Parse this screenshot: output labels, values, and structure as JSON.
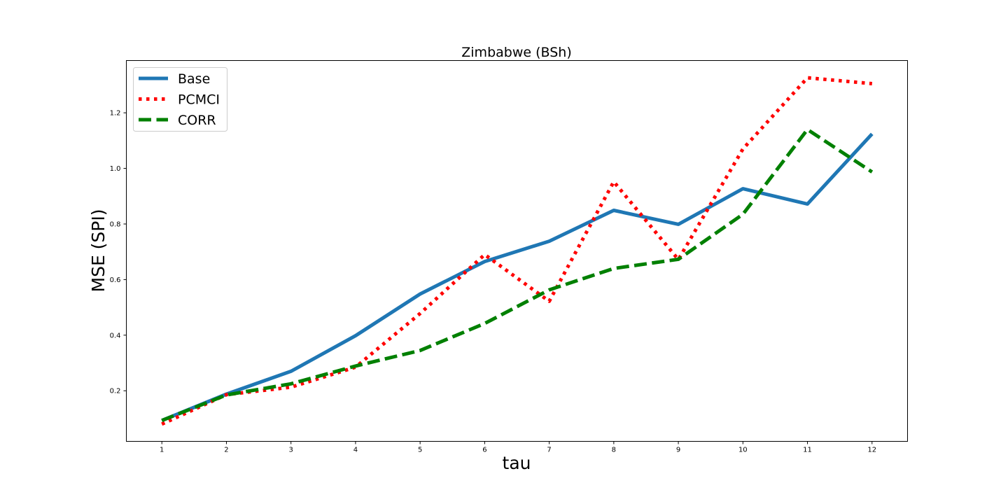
{
  "chart_data": {
    "type": "line",
    "title": "Zimbabwe (BSh)",
    "xlabel": "tau",
    "ylabel": "MSE (SPI)",
    "x": [
      1,
      2,
      3,
      4,
      5,
      6,
      7,
      8,
      9,
      10,
      11,
      12
    ],
    "x_tick_labels": [
      "1",
      "2",
      "3",
      "4",
      "5",
      "6",
      "7",
      "8",
      "9",
      "10",
      "11",
      "12"
    ],
    "y_ticks": [
      0.2,
      0.4,
      0.6,
      0.8,
      1.0,
      1.2
    ],
    "y_tick_labels": [
      "0.2",
      "0.4",
      "0.6",
      "0.8",
      "1.0",
      "1.2"
    ],
    "xlim": [
      0.45,
      12.55
    ],
    "ylim": [
      0.018,
      1.388
    ],
    "grid": false,
    "legend_position": "top-left",
    "series": [
      {
        "name": "Base",
        "color": "#1f77b4",
        "style": "solid",
        "values": [
          0.093,
          0.188,
          0.27,
          0.398,
          0.548,
          0.665,
          0.738,
          0.849,
          0.799,
          0.927,
          0.872,
          1.124
        ]
      },
      {
        "name": "PCMCI",
        "color": "#ff0000",
        "style": "dotted",
        "values": [
          0.08,
          0.186,
          0.213,
          0.285,
          0.478,
          0.69,
          0.522,
          0.952,
          0.672,
          1.07,
          1.326,
          1.305
        ]
      },
      {
        "name": "CORR",
        "color": "#008000",
        "style": "dashed",
        "values": [
          0.093,
          0.185,
          0.225,
          0.289,
          0.345,
          0.442,
          0.563,
          0.64,
          0.673,
          0.835,
          1.14,
          0.987
        ]
      }
    ]
  }
}
